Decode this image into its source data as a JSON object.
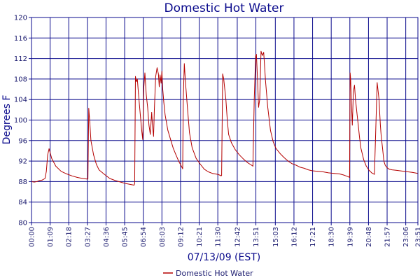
{
  "colors": {
    "background": "#ffffff",
    "plot_border": "#0a0a8c",
    "grid": "#0a0a8c",
    "text": "#0a0a8c",
    "series": "#b40000"
  },
  "chart_data": {
    "type": "line",
    "title": "Domestic Hot Water",
    "xlabel": "07/13/09 (EST)",
    "ylabel": "Degrees F",
    "ylim": [
      80,
      120
    ],
    "yticks": [
      80,
      84,
      88,
      92,
      96,
      100,
      104,
      108,
      112,
      116,
      120
    ],
    "xlim": [
      "00:00",
      "23:51"
    ],
    "xticks": [
      "00:00",
      "01:09",
      "02:18",
      "03:27",
      "04:36",
      "05:45",
      "06:54",
      "08:03",
      "09:12",
      "10:21",
      "11:30",
      "12:42",
      "13:51",
      "15:03",
      "16:12",
      "17:21",
      "18:30",
      "19:39",
      "20:48",
      "21:57",
      "23:06",
      "23:51"
    ],
    "grid": true,
    "legend_position": "bottom-center",
    "series": [
      {
        "name": "Domestic Hot Water",
        "color": "#b40000",
        "x": [
          "00:00",
          "00:10",
          "00:20",
          "00:30",
          "00:40",
          "00:50",
          "00:55",
          "01:00",
          "01:05",
          "01:15",
          "01:30",
          "01:50",
          "02:10",
          "02:30",
          "02:50",
          "03:10",
          "03:25",
          "03:29",
          "03:32",
          "03:36",
          "03:40",
          "03:50",
          "04:00",
          "04:10",
          "04:30",
          "04:50",
          "05:10",
          "05:30",
          "05:50",
          "06:10",
          "06:20",
          "06:22",
          "06:25",
          "06:28",
          "06:32",
          "06:36",
          "06:40",
          "06:44",
          "06:48",
          "06:52",
          "06:56",
          "07:00",
          "07:05",
          "07:10",
          "07:15",
          "07:20",
          "07:25",
          "07:28",
          "07:32",
          "07:35",
          "07:40",
          "07:45",
          "07:50",
          "07:53",
          "07:56",
          "08:00",
          "08:03",
          "08:06",
          "08:10",
          "08:15",
          "08:25",
          "08:35",
          "08:45",
          "08:55",
          "09:05",
          "09:15",
          "09:20",
          "09:22",
          "09:26",
          "09:30",
          "09:38",
          "09:45",
          "09:55",
          "10:10",
          "10:25",
          "10:40",
          "10:55",
          "11:10",
          "11:30",
          "11:40",
          "11:42",
          "11:44",
          "11:48",
          "11:52",
          "12:00",
          "12:05",
          "12:10",
          "12:20",
          "12:35",
          "12:50",
          "13:05",
          "13:20",
          "13:35",
          "13:40",
          "13:45",
          "13:50",
          "13:53",
          "13:57",
          "14:01",
          "14:05",
          "14:10",
          "14:15",
          "14:20",
          "14:27",
          "14:35",
          "14:45",
          "14:55",
          "15:05",
          "15:20",
          "15:35",
          "15:50",
          "16:05",
          "16:20",
          "16:35",
          "16:50",
          "17:05",
          "17:20",
          "17:40",
          "18:00",
          "18:20",
          "18:40",
          "19:00",
          "19:15",
          "19:25",
          "19:35",
          "19:38",
          "19:40",
          "19:42",
          "19:45",
          "19:48",
          "19:52",
          "19:56",
          "20:00",
          "20:05",
          "20:10",
          "20:15",
          "20:20",
          "20:30",
          "20:40",
          "20:50",
          "21:00",
          "21:10",
          "21:20",
          "21:27",
          "21:30",
          "21:32",
          "21:35",
          "21:40",
          "21:45",
          "21:50",
          "21:55",
          "22:00",
          "22:05",
          "22:15",
          "22:30",
          "22:45",
          "23:00",
          "23:15",
          "23:30",
          "23:51"
        ],
        "values": [
          88.0,
          87.9,
          88.0,
          88.2,
          88.3,
          88.6,
          90.0,
          93.2,
          94.4,
          92.5,
          91.0,
          90.0,
          89.5,
          89.1,
          88.8,
          88.6,
          88.5,
          88.5,
          102.3,
          99.5,
          96.0,
          93.2,
          91.4,
          90.3,
          89.4,
          88.6,
          88.2,
          87.9,
          87.6,
          87.4,
          87.3,
          87.6,
          108.5,
          107.5,
          108.0,
          105.2,
          102.8,
          100.5,
          98.0,
          96.2,
          106.5,
          109.2,
          105.0,
          102.5,
          99.0,
          97.2,
          101.5,
          99.0,
          96.8,
          102.0,
          108.5,
          110.2,
          109.0,
          106.5,
          108.8,
          107.2,
          109.5,
          106.0,
          103.5,
          101.0,
          98.0,
          96.2,
          94.5,
          93.2,
          92.0,
          91.0,
          90.5,
          104.0,
          111.0,
          107.5,
          102.0,
          97.5,
          94.6,
          92.5,
          91.4,
          90.4,
          89.9,
          89.6,
          89.4,
          89.2,
          89.1,
          89.2,
          109.0,
          108.0,
          104.0,
          100.0,
          97.2,
          95.6,
          94.2,
          93.2,
          92.4,
          91.7,
          91.2,
          91.0,
          104.0,
          112.5,
          112.8,
          108.0,
          102.5,
          104.0,
          113.4,
          112.6,
          113.2,
          107.5,
          102.5,
          98.0,
          95.8,
          94.5,
          93.5,
          92.7,
          92.0,
          91.5,
          91.2,
          90.8,
          90.6,
          90.3,
          90.1,
          90.0,
          89.9,
          89.7,
          89.6,
          89.5,
          89.3,
          89.1,
          88.9,
          88.8,
          109.2,
          108.0,
          103.0,
          99.0,
          105.5,
          106.8,
          104.0,
          101.5,
          99.0,
          96.5,
          94.5,
          92.3,
          91.0,
          90.2,
          89.7,
          89.4,
          107.3,
          104.0,
          101.0,
          99.0,
          97.0,
          94.5,
          92.0,
          91.2,
          90.8,
          90.6,
          90.4,
          90.3,
          90.2,
          90.1,
          90.0,
          89.9,
          89.8,
          89.6
        ]
      }
    ]
  }
}
